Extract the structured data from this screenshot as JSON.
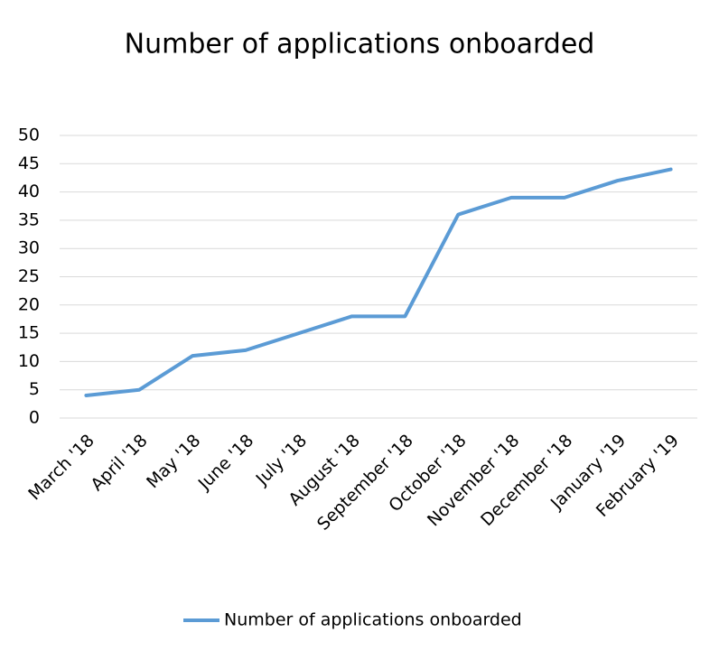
{
  "chart_data": {
    "type": "line",
    "title": "Number of applications onboarded",
    "categories": [
      "March '18",
      "April '18",
      "May '18",
      "June '18",
      "July '18",
      "August '18",
      "September '18",
      "October '18",
      "November '18",
      "December '18",
      "January '19",
      "February '19"
    ],
    "series": [
      {
        "name": "Number of applications onboarded",
        "color": "#5b9bd5",
        "values": [
          4,
          5,
          11,
          12,
          15,
          18,
          18,
          36,
          39,
          39,
          42,
          44
        ]
      }
    ],
    "ylim": [
      0,
      50
    ],
    "yticks": [
      0,
      5,
      10,
      15,
      20,
      25,
      30,
      35,
      40,
      45,
      50
    ],
    "grid": true,
    "legend": "bottom"
  }
}
